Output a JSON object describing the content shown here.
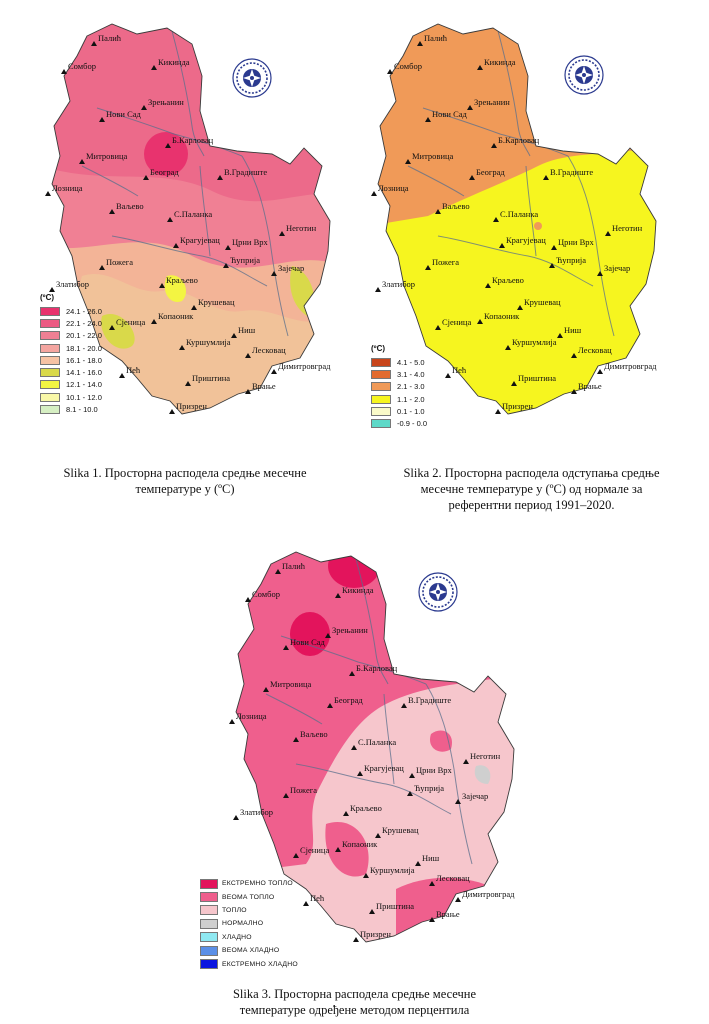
{
  "maps": [
    {
      "id": "map1",
      "caption_lines": [
        "Slika 1. Просторна расподела средње месечне",
        "температуре у (ºC)"
      ],
      "legend": {
        "unit": "(ºC)",
        "items": [
          {
            "label": "24.1 - 26.0",
            "color": "#e8336e"
          },
          {
            "label": "22.1 - 24.0",
            "color": "#ec5a83"
          },
          {
            "label": "20.1 - 22.0",
            "color": "#f08094"
          },
          {
            "label": "18.1 - 20.0",
            "color": "#f4a5a0"
          },
          {
            "label": "16.1 - 18.0",
            "color": "#f6c2a4"
          },
          {
            "label": "14.1 - 16.0",
            "color": "#d9d94a"
          },
          {
            "label": "12.1 - 14.0",
            "color": "#f3f542"
          },
          {
            "label": "10.1 - 12.0",
            "color": "#f9f8a8"
          },
          {
            "label": "8.1 - 10.0",
            "color": "#d6efc3"
          }
        ]
      }
    },
    {
      "id": "map2",
      "caption_lines": [
        "Slika 2. Просторна расподела одступања средње",
        "месечне температуре у (ºC) од нормале за",
        "референтни период 1991–2020."
      ],
      "legend": {
        "unit": "(ºC)",
        "items": [
          {
            "label": "4.1 - 5.0",
            "color": "#c8451b"
          },
          {
            "label": "3.1 - 4.0",
            "color": "#e26b2f"
          },
          {
            "label": "2.1 - 3.0",
            "color": "#f09a58"
          },
          {
            "label": "1.1 - 2.0",
            "color": "#f6f51f"
          },
          {
            "label": "0.1 - 1.0",
            "color": "#fafac8"
          },
          {
            "label": "-0.9 - 0.0",
            "color": "#5ed9c8"
          }
        ]
      }
    },
    {
      "id": "map3",
      "caption_lines": [
        "Slika 3. Просторна расподела средње месечне",
        "температуре одређене методом перцентила"
      ],
      "legend": {
        "unit": "",
        "items": [
          {
            "label": "ЕКСТРЕМНО ТОПЛО",
            "color": "#e3145c"
          },
          {
            "label": "ВЕОМА ТОПЛО",
            "color": "#ef5f8d"
          },
          {
            "label": "ТОПЛО",
            "color": "#f6c6cc"
          },
          {
            "label": "НОРМАЛНО",
            "color": "#cfcfcf"
          },
          {
            "label": "ХЛАДНО",
            "color": "#8fe9f2"
          },
          {
            "label": "ВЕОМА ХЛАДНО",
            "color": "#5b8fe6"
          },
          {
            "label": "ЕКСТРЕМНО ХЛАДНО",
            "color": "#0b16e0"
          }
        ]
      }
    }
  ],
  "cities": [
    "Палић",
    "Сомбор",
    "Кикинда",
    "Зрењанин",
    "Нови Сад",
    "Б.Карловац",
    "Митровица",
    "Београд",
    "Лозница",
    "В.Градиште",
    "Ваљево",
    "С.Паланка",
    "Неготин",
    "Црни Врх",
    "Крагујевац",
    "Ћуприја",
    "Зајечар",
    "Пожега",
    "Златибор",
    "Краљево",
    "Крушевац",
    "Сјеница",
    "Копаоник",
    "Ниш",
    "Куршумлија",
    "Лесковац",
    "Димитровград",
    "Пећ",
    "Приштина",
    "Врање",
    "Призрен"
  ],
  "logo_icon": "rhmz-logo-icon",
  "colors": {
    "map1_base": "#ec6a8a",
    "map1_south": "#f3b497",
    "map2_north": "#f09a58",
    "map2_south": "#f6f51f",
    "map3_north": "#ef5f8d",
    "map3_center": "#f6c6cc"
  }
}
